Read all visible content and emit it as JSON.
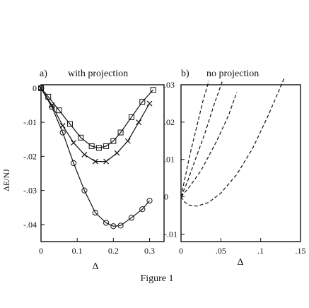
{
  "figure_caption": "Figure 1",
  "ylabel": "ΔE/NJ",
  "chart_data": [
    {
      "type": "line",
      "panel_label": "a)",
      "title": "with projection",
      "xlabel": "Δ",
      "ylabel": "ΔE/NJ",
      "xlim": [
        0,
        0.34
      ],
      "ylim": [
        -0.045,
        0.001
      ],
      "x_ticks": [
        "0",
        "0.1",
        "0.2",
        "0.3"
      ],
      "y_ticks": [
        "0",
        "-.01",
        "-.02",
        "-.03",
        "-.04"
      ],
      "series": [
        {
          "marker": "square",
          "x": [
            0.0,
            0.02,
            0.05,
            0.08,
            0.11,
            0.14,
            0.16,
            0.18,
            0.2,
            0.22,
            0.25,
            0.28,
            0.31
          ],
          "y": [
            0.0,
            -0.0025,
            -0.0065,
            -0.0105,
            -0.0145,
            -0.017,
            -0.0175,
            -0.017,
            -0.0155,
            -0.013,
            -0.0085,
            -0.004,
            -0.0005
          ]
        },
        {
          "marker": "cross",
          "x": [
            0.0,
            0.03,
            0.06,
            0.09,
            0.12,
            0.15,
            0.18,
            0.21,
            0.24,
            0.27,
            0.3
          ],
          "y": [
            0.0,
            -0.005,
            -0.011,
            -0.016,
            -0.0195,
            -0.0215,
            -0.0215,
            -0.019,
            -0.0155,
            -0.01,
            -0.0045
          ]
        },
        {
          "marker": "circle",
          "x": [
            0.0,
            0.03,
            0.06,
            0.09,
            0.12,
            0.15,
            0.18,
            0.2,
            0.22,
            0.25,
            0.28,
            0.3
          ],
          "y": [
            0.0,
            -0.0055,
            -0.013,
            -0.022,
            -0.03,
            -0.0365,
            -0.0395,
            -0.0405,
            -0.0403,
            -0.038,
            -0.0355,
            -0.033
          ]
        }
      ]
    },
    {
      "type": "line",
      "panel_label": "b)",
      "title": "no projection",
      "xlabel": "Δ",
      "xlim": [
        0,
        0.15
      ],
      "ylim": [
        -0.012,
        0.03
      ],
      "x_ticks": [
        "0",
        ".05",
        ".1",
        ".15"
      ],
      "y_ticks": [
        ".03",
        ".02",
        ".01",
        "0",
        "-.01"
      ],
      "series": [
        {
          "style": "dashed",
          "x": [
            0.0,
            0.005,
            0.012,
            0.02,
            0.028,
            0.035
          ],
          "y": [
            0.0,
            0.005,
            0.012,
            0.019,
            0.026,
            0.031
          ]
        },
        {
          "style": "dashed",
          "x": [
            0.0,
            0.008,
            0.018,
            0.03,
            0.042,
            0.052
          ],
          "y": [
            0.0,
            0.004,
            0.01,
            0.017,
            0.025,
            0.031
          ]
        },
        {
          "style": "dashed",
          "x": [
            0.0,
            0.01,
            0.025,
            0.045,
            0.06,
            0.07
          ],
          "y": [
            0.0,
            0.0025,
            0.007,
            0.015,
            0.022,
            0.028
          ]
        },
        {
          "style": "dashed",
          "x": [
            0.0,
            0.005,
            0.01,
            0.02,
            0.035,
            0.05,
            0.07,
            0.09,
            0.11,
            0.13
          ],
          "y": [
            0.0,
            -0.0015,
            -0.0022,
            -0.0025,
            -0.0015,
            0.001,
            0.006,
            0.013,
            0.022,
            0.032
          ]
        }
      ]
    }
  ]
}
